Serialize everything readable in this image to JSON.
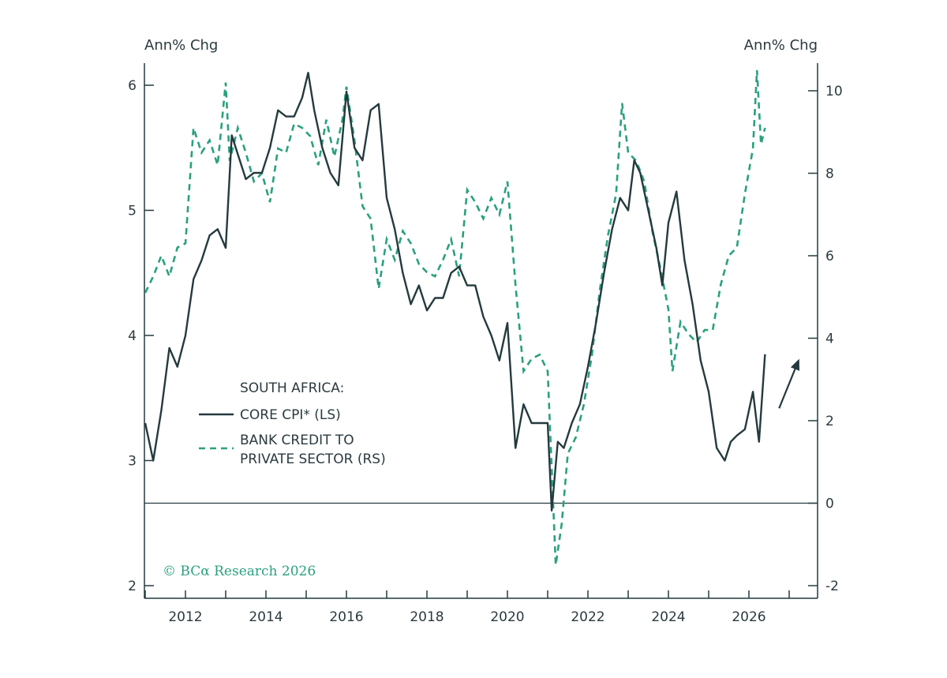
{
  "chart_data": {
    "type": "line",
    "title": "",
    "left_axis_label": "Ann% Chg",
    "right_axis_label": "Ann% Chg",
    "left_ylim": [
      2,
      6.3
    ],
    "right_ylim": [
      -2,
      10.5
    ],
    "xlim": [
      2011.0,
      2027.7
    ],
    "x_ticks": [
      2012,
      2014,
      2016,
      2018,
      2020,
      2022,
      2024,
      2026
    ],
    "left_ticks": [
      2,
      3,
      4,
      5,
      6
    ],
    "right_ticks": [
      -2,
      0,
      2,
      4,
      6,
      8,
      10
    ],
    "zero_line_right": 0,
    "grid": false,
    "legend": {
      "position": "middle-left",
      "heading": "SOUTH AFRICA:",
      "entries": [
        {
          "lines": [
            "CORE CPI* (LS)"
          ]
        },
        {
          "lines": [
            "BANK CREDIT TO",
            "PRIVATE SECTOR (RS)"
          ]
        }
      ]
    },
    "annotation_arrow": {
      "from": [
        2026.75,
        2.3
      ],
      "to": [
        2027.25,
        3.5
      ],
      "axis": "right"
    },
    "credit": "© BCα Research 2026",
    "colors": {
      "core_cpi": "#243a3e",
      "bank_credit": "#2aa07f",
      "axis": "#243a3e"
    },
    "series": [
      {
        "name": "CORE CPI* (LS)",
        "axis": "left",
        "style": "solid",
        "x": [
          2011.0,
          2011.2,
          2011.4,
          2011.6,
          2011.8,
          2012.0,
          2012.2,
          2012.4,
          2012.6,
          2012.8,
          2013.0,
          2013.15,
          2013.3,
          2013.5,
          2013.7,
          2013.9,
          2014.1,
          2014.3,
          2014.5,
          2014.7,
          2014.9,
          2015.05,
          2015.2,
          2015.4,
          2015.6,
          2015.8,
          2016.0,
          2016.2,
          2016.4,
          2016.6,
          2016.8,
          2017.0,
          2017.2,
          2017.4,
          2017.6,
          2017.8,
          2018.0,
          2018.2,
          2018.4,
          2018.6,
          2018.8,
          2019.0,
          2019.2,
          2019.4,
          2019.6,
          2019.8,
          2020.0,
          2020.2,
          2020.4,
          2020.6,
          2020.8,
          2021.0,
          2021.1,
          2021.25,
          2021.4,
          2021.6,
          2021.8,
          2022.0,
          2022.2,
          2022.4,
          2022.6,
          2022.8,
          2023.0,
          2023.15,
          2023.3,
          2023.5,
          2023.7,
          2023.85,
          2024.0,
          2024.2,
          2024.4,
          2024.6,
          2024.8,
          2025.0,
          2025.2,
          2025.4,
          2025.55,
          2025.7,
          2025.9,
          2026.1,
          2026.25,
          2026.4
        ],
        "values": [
          3.3,
          3.0,
          3.4,
          3.9,
          3.75,
          4.0,
          4.45,
          4.6,
          4.8,
          4.85,
          4.7,
          5.6,
          5.45,
          5.25,
          5.3,
          5.3,
          5.5,
          5.8,
          5.75,
          5.75,
          5.9,
          6.1,
          5.8,
          5.5,
          5.3,
          5.2,
          5.95,
          5.5,
          5.4,
          5.8,
          5.85,
          5.1,
          4.85,
          4.5,
          4.25,
          4.4,
          4.2,
          4.3,
          4.3,
          4.5,
          4.55,
          4.4,
          4.4,
          4.15,
          4.0,
          3.8,
          4.1,
          3.1,
          3.45,
          3.3,
          3.3,
          3.3,
          2.6,
          3.15,
          3.1,
          3.3,
          3.45,
          3.75,
          4.1,
          4.5,
          4.85,
          5.1,
          5.0,
          5.4,
          5.3,
          5.0,
          4.7,
          4.4,
          4.9,
          5.15,
          4.6,
          4.25,
          3.8,
          3.55,
          3.1,
          3.0,
          3.15,
          3.2,
          3.25,
          3.55,
          3.15,
          3.85
        ]
      },
      {
        "name": "BANK CREDIT TO PRIVATE SECTOR (RS)",
        "axis": "right",
        "style": "dashed",
        "x": [
          2011.0,
          2011.2,
          2011.4,
          2011.6,
          2011.8,
          2012.0,
          2012.2,
          2012.4,
          2012.6,
          2012.8,
          2013.0,
          2013.1,
          2013.3,
          2013.5,
          2013.7,
          2013.9,
          2014.1,
          2014.3,
          2014.5,
          2014.7,
          2014.9,
          2015.1,
          2015.3,
          2015.5,
          2015.7,
          2015.9,
          2016.0,
          2016.2,
          2016.4,
          2016.6,
          2016.8,
          2017.0,
          2017.2,
          2017.4,
          2017.6,
          2017.8,
          2018.0,
          2018.2,
          2018.4,
          2018.6,
          2018.8,
          2019.0,
          2019.2,
          2019.4,
          2019.6,
          2019.8,
          2020.0,
          2020.2,
          2020.4,
          2020.6,
          2020.8,
          2021.0,
          2021.2,
          2021.35,
          2021.5,
          2021.7,
          2021.9,
          2022.1,
          2022.3,
          2022.5,
          2022.7,
          2022.85,
          2023.0,
          2023.2,
          2023.4,
          2023.6,
          2023.8,
          2024.0,
          2024.1,
          2024.3,
          2024.5,
          2024.7,
          2024.9,
          2025.1,
          2025.3,
          2025.5,
          2025.7,
          2025.9,
          2026.1,
          2026.2,
          2026.3,
          2026.4
        ],
        "values": [
          5.1,
          5.5,
          6.0,
          5.5,
          6.2,
          6.3,
          9.1,
          8.5,
          8.8,
          8.2,
          10.2,
          8.3,
          9.1,
          8.5,
          7.8,
          8.0,
          7.3,
          8.6,
          8.5,
          9.2,
          9.1,
          8.9,
          8.2,
          9.3,
          8.4,
          9.3,
          10.1,
          8.8,
          7.2,
          6.9,
          5.2,
          6.4,
          5.9,
          6.6,
          6.3,
          5.8,
          5.6,
          5.5,
          5.9,
          6.4,
          5.5,
          7.6,
          7.3,
          6.9,
          7.4,
          7.0,
          7.8,
          5.3,
          3.2,
          3.5,
          3.6,
          3.2,
          -1.5,
          -0.5,
          1.2,
          1.6,
          2.4,
          3.6,
          5.2,
          6.5,
          7.5,
          9.7,
          8.5,
          8.3,
          7.8,
          6.6,
          5.7,
          4.7,
          3.2,
          4.4,
          4.1,
          3.9,
          4.2,
          4.2,
          5.3,
          6.0,
          6.2,
          7.5,
          8.6,
          10.5,
          8.7,
          9.1
        ]
      }
    ]
  }
}
